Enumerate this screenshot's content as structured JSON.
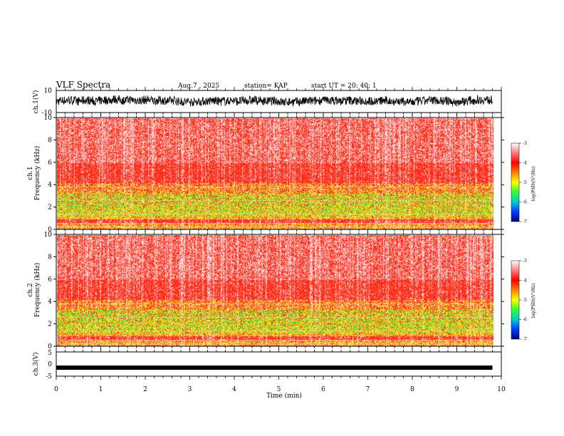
{
  "header": {
    "title": "VLF Spectra",
    "date": "Aug.7 , 2025",
    "station": "station= KAP",
    "start_ut": "start UT = 20: 40: 1"
  },
  "colors": {
    "spectrum_low": "#ff2a1a",
    "spectrum_high": "#ffffff",
    "spectrum_mid": "#f2e21c",
    "spectrum_band": "#36e02e",
    "trace": "#000000"
  },
  "chart_data": [
    {
      "type": "line",
      "panel": "ch1_waveform",
      "ylabel": "ch.1(V)",
      "ylim": [
        -10,
        10
      ],
      "yticks": [
        "10",
        "-10"
      ],
      "xlim": [
        0,
        10
      ],
      "trace_extent_min": [
        0,
        9.8
      ],
      "description_values": {
        "typical_range_V": [
          -5,
          6
        ]
      }
    },
    {
      "type": "heatmap",
      "panel": "ch1_spectrogram",
      "ylabel": "ch.1",
      "ylabel2": "Frequency (kHz)",
      "ylim": [
        0,
        10
      ],
      "yticks": [
        "0",
        "2",
        "4",
        "6",
        "8",
        "10"
      ],
      "xlim": [
        0,
        10
      ],
      "colorbar": {
        "label": "log(PSD)(V²/Hz)",
        "range": [
          -7,
          -3
        ],
        "ticks": [
          "-3",
          "-4",
          "-5",
          "-6",
          "-7"
        ]
      }
    },
    {
      "type": "heatmap",
      "panel": "ch2_spectrogram",
      "ylabel": "ch.2",
      "ylabel2": "Frequency (kHz)",
      "ylim": [
        0,
        10
      ],
      "yticks": [
        "0",
        "2",
        "4",
        "6",
        "8",
        "10"
      ],
      "xlim": [
        0,
        10
      ],
      "colorbar": {
        "label": "log(PSD)(V²/Hz)",
        "range": [
          -7,
          -3
        ],
        "ticks": [
          "-3",
          "-4",
          "-5",
          "-6",
          "-7"
        ]
      }
    },
    {
      "type": "line",
      "panel": "ch3_waveform",
      "ylabel": "ch.3(V)",
      "ylim": [
        -5,
        5
      ],
      "yticks": [
        "5",
        "0",
        "-5"
      ],
      "xlim": [
        0,
        10
      ],
      "level_V": -1.5,
      "xlabel": "Time (min)",
      "xticks": [
        "0",
        "1",
        "2",
        "3",
        "4",
        "5",
        "6",
        "7",
        "8",
        "9",
        "10"
      ]
    }
  ]
}
